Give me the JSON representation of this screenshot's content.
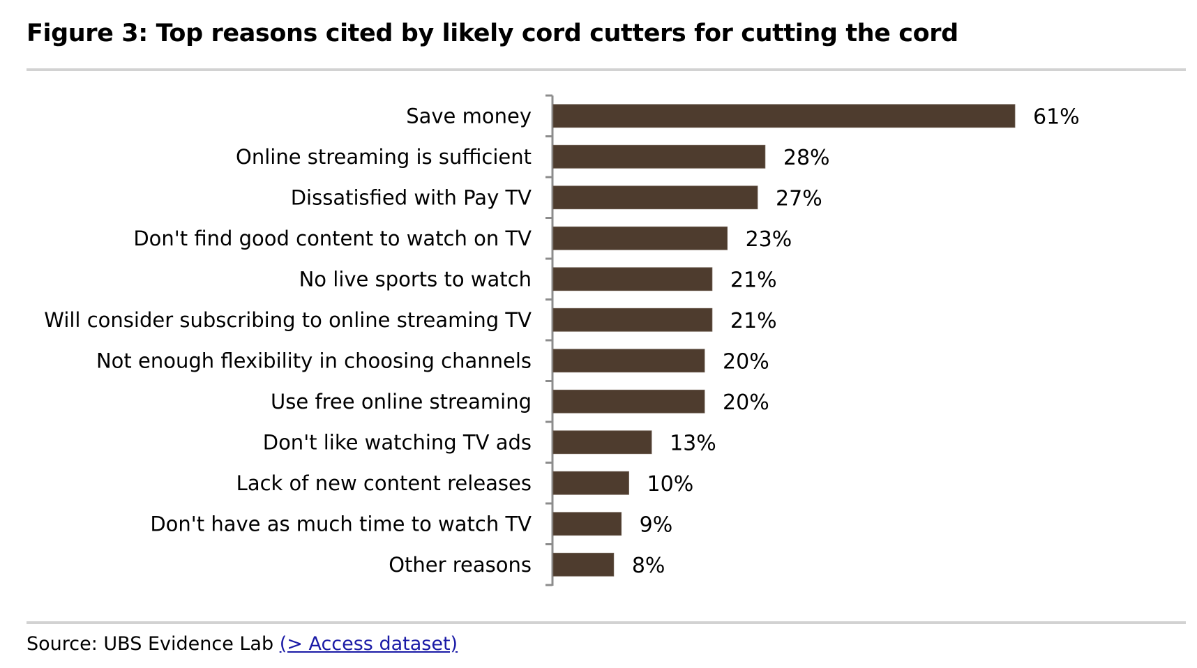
{
  "header": {
    "title": "Figure 3: Top reasons cited by likely cord cutters for cutting the cord"
  },
  "footer": {
    "source_prefix": "Source:  UBS Evidence Lab ",
    "source_link": "(> Access dataset)"
  },
  "colors": {
    "bar": "#4e3c2e",
    "axis": "#8c8c8c",
    "rule": "#d2d2d2",
    "link": "#1a1aa6"
  },
  "chart_data": {
    "type": "bar",
    "orientation": "horizontal",
    "title": "Figure 3: Top reasons cited by likely cord cutters for cutting the cord",
    "xlabel": "",
    "ylabel": "",
    "xlim": [
      0,
      70
    ],
    "grid": false,
    "legend": "none",
    "value_format": "percent",
    "categories": [
      "Save money",
      "Online streaming is sufficient",
      "Dissatisfied with Pay TV",
      "Don't find good content to watch on TV",
      "No live sports to watch",
      "Will consider subscribing to online streaming TV",
      "Not enough flexibility in choosing channels",
      "Use free online streaming",
      "Don't like watching TV ads",
      "Lack of new content releases",
      "Don't have as much time to watch TV",
      "Other reasons"
    ],
    "values": [
      61,
      28,
      27,
      23,
      21,
      21,
      20,
      20,
      13,
      10,
      9,
      8
    ],
    "data_labels": [
      "61%",
      "28%",
      "27%",
      "23%",
      "21%",
      "21%",
      "20%",
      "20%",
      "13%",
      "10%",
      "9%",
      "8%"
    ],
    "source": "UBS Evidence Lab"
  }
}
